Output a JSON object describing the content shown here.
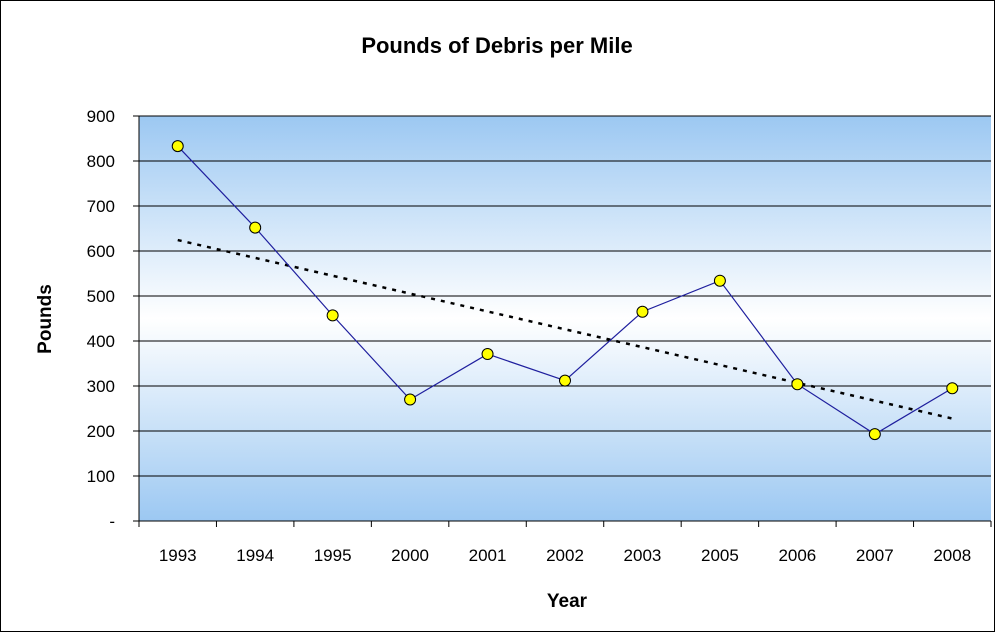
{
  "chart_data": {
    "type": "line",
    "title": "Pounds of Debris per Mile",
    "xlabel": "Year",
    "ylabel": "Pounds",
    "categories": [
      "1993",
      "1994",
      "1995",
      "2000",
      "2001",
      "2002",
      "2003",
      "2005",
      "2006",
      "2007",
      "2008"
    ],
    "series": [
      {
        "values": [
          833,
          652,
          457,
          270,
          371,
          312,
          465,
          534,
          304,
          193,
          295
        ],
        "color": "#1f1f9e",
        "marker_color": "#ffff00"
      }
    ],
    "trendline": {
      "type": "linear",
      "style": "dotted",
      "color": "#000000"
    },
    "ylim": [
      0,
      900
    ],
    "yticks": [
      0,
      100,
      200,
      300,
      400,
      500,
      600,
      700,
      800,
      900
    ],
    "ytick_labels": [
      "-",
      "100",
      "200",
      "300",
      "400",
      "500",
      "600",
      "700",
      "800",
      "900"
    ],
    "grid": true,
    "legend": "none",
    "background_gradient": [
      "#9cc8f2",
      "#ffffff"
    ]
  }
}
